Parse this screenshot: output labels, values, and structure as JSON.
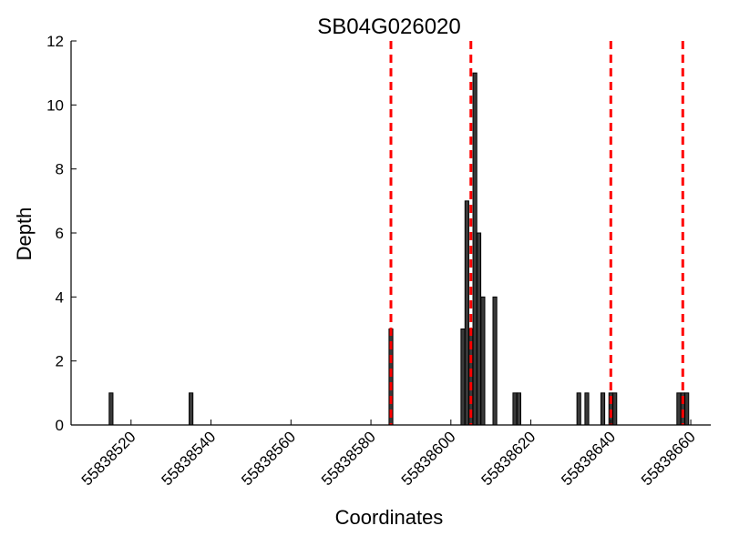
{
  "chart_data": {
    "type": "bar",
    "title": "SB04G026020",
    "xlabel": "Coordinates",
    "ylabel": "Depth",
    "xlim": [
      55838505,
      55838665
    ],
    "ylim": [
      0,
      12
    ],
    "grid": false,
    "x_ticks": [
      55838520,
      55838540,
      55838560,
      55838580,
      55838600,
      55838620,
      55838640,
      55838660
    ],
    "x_tick_labels": [
      "55838520",
      "55838540",
      "55838560",
      "55838580",
      "55838600",
      "55838620",
      "55838640",
      "55838660"
    ],
    "y_ticks": [
      0,
      2,
      4,
      6,
      8,
      10,
      12
    ],
    "y_tick_labels": [
      "0",
      "2",
      "4",
      "6",
      "8",
      "10",
      "12"
    ],
    "bar_color": "#3a3a3a",
    "marker_line_color": "#ff0000",
    "bars": [
      {
        "x": 55838515,
        "depth": 1
      },
      {
        "x": 55838535,
        "depth": 1
      },
      {
        "x": 55838585,
        "depth": 3
      },
      {
        "x": 55838603,
        "depth": 3
      },
      {
        "x": 55838604,
        "depth": 7
      },
      {
        "x": 55838605,
        "depth": 3
      },
      {
        "x": 55838606,
        "depth": 11
      },
      {
        "x": 55838607,
        "depth": 6
      },
      {
        "x": 55838608,
        "depth": 4
      },
      {
        "x": 55838611,
        "depth": 4
      },
      {
        "x": 55838616,
        "depth": 1
      },
      {
        "x": 55838617,
        "depth": 1
      },
      {
        "x": 55838632,
        "depth": 1
      },
      {
        "x": 55838634,
        "depth": 1
      },
      {
        "x": 55838638,
        "depth": 1
      },
      {
        "x": 55838640,
        "depth": 1
      },
      {
        "x": 55838641,
        "depth": 1
      },
      {
        "x": 55838657,
        "depth": 1
      },
      {
        "x": 55838658,
        "depth": 1
      },
      {
        "x": 55838659,
        "depth": 1
      }
    ],
    "marker_lines": [
      55838585,
      55838605,
      55838640,
      55838658
    ]
  }
}
